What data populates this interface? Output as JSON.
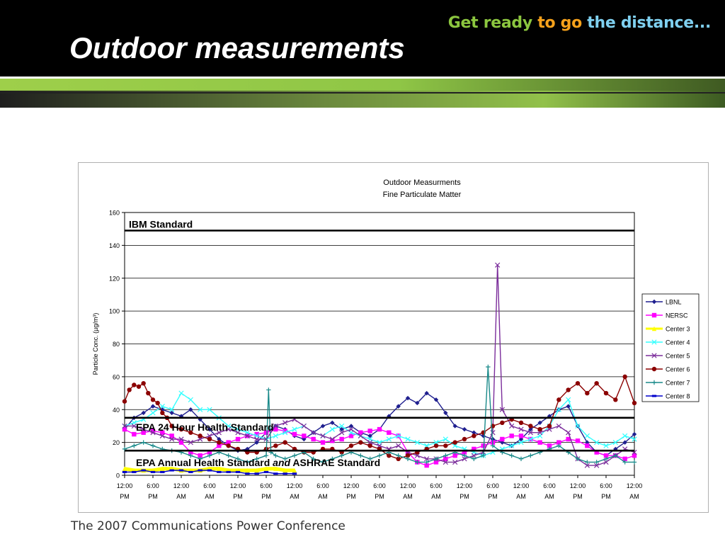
{
  "slide": {
    "title": "Outdoor measurements",
    "tagline": {
      "part1": "Get ready",
      "part2": "to go",
      "part3": "the distance..."
    },
    "footer": "The 2007 Communications Power Conference"
  },
  "chart_data": {
    "type": "line",
    "title": "Outdoor Measurments",
    "subtitle": "Fine Particulate Matter",
    "ylabel": "Particle Conc. (µg/m³)",
    "xlabel": "",
    "ylim": [
      0,
      160
    ],
    "yticks": [
      0,
      20,
      40,
      60,
      80,
      100,
      120,
      140,
      160
    ],
    "xlim": [
      0,
      108
    ],
    "x_units": "hours",
    "xticks": [
      {
        "x": 0,
        "line1": "12:00",
        "line2": "PM"
      },
      {
        "x": 6,
        "line1": "6:00",
        "line2": "PM"
      },
      {
        "x": 12,
        "line1": "12:00",
        "line2": "AM"
      },
      {
        "x": 18,
        "line1": "6:00",
        "line2": "AM"
      },
      {
        "x": 24,
        "line1": "12:00",
        "line2": "PM"
      },
      {
        "x": 30,
        "line1": "6:00",
        "line2": "PM"
      },
      {
        "x": 36,
        "line1": "12:00",
        "line2": "AM"
      },
      {
        "x": 42,
        "line1": "6:00",
        "line2": "AM"
      },
      {
        "x": 48,
        "line1": "12:00",
        "line2": "PM"
      },
      {
        "x": 54,
        "line1": "6:00",
        "line2": "PM"
      },
      {
        "x": 60,
        "line1": "12:00",
        "line2": "AM"
      },
      {
        "x": 66,
        "line1": "6:00",
        "line2": "AM"
      },
      {
        "x": 72,
        "line1": "12:00",
        "line2": "PM"
      },
      {
        "x": 78,
        "line1": "6:00",
        "line2": "PM"
      },
      {
        "x": 84,
        "line1": "12:00",
        "line2": "AM"
      },
      {
        "x": 90,
        "line1": "6:00",
        "line2": "AM"
      },
      {
        "x": 96,
        "line1": "12:00",
        "line2": "PM"
      },
      {
        "x": 102,
        "line1": "6:00",
        "line2": "PM"
      },
      {
        "x": 108,
        "line1": "12:00",
        "line2": "AM"
      }
    ],
    "grid": true,
    "legend_position": "right",
    "reference_lines": [
      {
        "label": "IBM Standard",
        "y": 149
      },
      {
        "label": "EPA 24 Hour Health Standard",
        "y": 35
      },
      {
        "label_pre": "EPA Annual Health Standard ",
        "label_em": "and",
        "label_post": " ASHRAE Standard",
        "y": 15
      }
    ],
    "series": [
      {
        "name": "LBNL",
        "color": "#1f1f8f",
        "marker": "diamond",
        "x": [
          0,
          2,
          4,
          6,
          8,
          10,
          12,
          14,
          16,
          18,
          20,
          22,
          24,
          26,
          28,
          30,
          32,
          34,
          36,
          38,
          40,
          42,
          44,
          46,
          48,
          50,
          52,
          54,
          56,
          58,
          60,
          62,
          64,
          66,
          68,
          70,
          72,
          74,
          76,
          78,
          80,
          82,
          84,
          86,
          88,
          90,
          92,
          94,
          96,
          98,
          100,
          102,
          104,
          106,
          108
        ],
        "y": [
          28,
          35,
          38,
          42,
          40,
          38,
          36,
          40,
          34,
          28,
          22,
          18,
          15,
          16,
          20,
          26,
          30,
          28,
          24,
          22,
          26,
          30,
          32,
          28,
          30,
          26,
          24,
          28,
          36,
          42,
          47,
          44,
          50,
          46,
          38,
          30,
          28,
          26,
          24,
          22,
          20,
          18,
          22,
          28,
          32,
          36,
          40,
          42,
          30,
          20,
          14,
          12,
          16,
          20,
          25
        ]
      },
      {
        "name": "NERSC",
        "color": "#ff00ff",
        "marker": "square",
        "x": [
          0,
          2,
          4,
          6,
          8,
          10,
          12,
          14,
          16,
          18,
          20,
          22,
          24,
          26,
          28,
          30,
          32,
          34,
          36,
          38,
          40,
          42,
          44,
          46,
          48,
          50,
          52,
          54,
          56,
          58,
          60,
          62,
          64,
          66,
          68,
          70,
          72,
          74,
          76,
          78,
          80,
          82,
          84,
          86,
          88,
          90,
          92,
          94,
          96,
          98,
          100,
          102,
          104,
          106,
          108
        ],
        "y": [
          28,
          25,
          26,
          27,
          26,
          24,
          20,
          14,
          12,
          14,
          18,
          20,
          22,
          24,
          25,
          26,
          28,
          27,
          25,
          24,
          22,
          20,
          21,
          22,
          24,
          26,
          27,
          28,
          26,
          24,
          14,
          8,
          6,
          8,
          10,
          12,
          14,
          16,
          18,
          20,
          22,
          24,
          24,
          22,
          20,
          18,
          20,
          22,
          21,
          18,
          14,
          12,
          12,
          10,
          12
        ]
      },
      {
        "name": "Center 3",
        "color": "#ffff00",
        "marker": "triangle",
        "x": [
          0,
          2,
          4,
          6,
          8,
          10,
          12,
          14,
          16,
          18,
          20,
          22,
          24,
          26,
          28,
          30,
          32,
          34,
          36
        ],
        "y": [
          4,
          3,
          3,
          3,
          4,
          4,
          3,
          3,
          3,
          4,
          4,
          3,
          3,
          3,
          3,
          4,
          4,
          3,
          3
        ]
      },
      {
        "name": "Center 4",
        "color": "#33ffff",
        "marker": "x",
        "x": [
          0,
          2,
          4,
          6,
          8,
          10,
          12,
          14,
          16,
          18,
          20,
          22,
          24,
          26,
          28,
          30,
          32,
          34,
          36,
          38,
          40,
          42,
          44,
          46,
          48,
          50,
          52,
          54,
          56,
          58,
          60,
          62,
          64,
          66,
          68,
          70,
          72,
          74,
          76,
          78,
          80,
          82,
          84,
          86,
          88,
          90,
          92,
          94,
          96,
          98,
          100,
          102,
          104,
          106,
          108
        ],
        "y": [
          30,
          32,
          34,
          38,
          42,
          40,
          50,
          46,
          40,
          40,
          35,
          30,
          28,
          26,
          24,
          22,
          24,
          26,
          28,
          30,
          26,
          24,
          28,
          30,
          26,
          24,
          22,
          20,
          22,
          24,
          22,
          20,
          18,
          20,
          22,
          18,
          16,
          14,
          12,
          14,
          16,
          18,
          20,
          22,
          24,
          30,
          40,
          46,
          30,
          24,
          20,
          18,
          20,
          24,
          22
        ]
      },
      {
        "name": "Center 5",
        "color": "#7b2d9b",
        "marker": "x",
        "x": [
          0,
          2,
          4,
          6,
          8,
          10,
          12,
          14,
          16,
          18,
          20,
          22,
          24,
          26,
          28,
          30,
          32,
          34,
          36,
          38,
          40,
          42,
          44,
          46,
          48,
          50,
          52,
          54,
          56,
          58,
          60,
          62,
          64,
          66,
          68,
          70,
          72,
          74,
          76,
          78,
          79,
          80,
          82,
          84,
          86,
          88,
          90,
          92,
          94,
          96,
          98,
          100,
          102,
          104,
          106,
          108
        ],
        "y": [
          30,
          30,
          28,
          26,
          24,
          22,
          22,
          20,
          22,
          24,
          26,
          28,
          26,
          24,
          22,
          22,
          30,
          32,
          34,
          30,
          26,
          24,
          22,
          26,
          28,
          24,
          20,
          18,
          16,
          18,
          14,
          12,
          10,
          10,
          8,
          8,
          10,
          12,
          14,
          26,
          128,
          40,
          30,
          28,
          26,
          26,
          28,
          30,
          26,
          10,
          6,
          6,
          8,
          12,
          16,
          14
        ]
      },
      {
        "name": "Center 6",
        "color": "#8b0000",
        "marker": "circle",
        "x": [
          0,
          1,
          2,
          3,
          4,
          5,
          6,
          7,
          8,
          9,
          10,
          12,
          14,
          16,
          18,
          20,
          22,
          24,
          26,
          28,
          30,
          32,
          34,
          36,
          38,
          40,
          42,
          44,
          46,
          48,
          50,
          52,
          54,
          56,
          58,
          60,
          62,
          64,
          66,
          68,
          70,
          72,
          74,
          76,
          78,
          80,
          82,
          84,
          86,
          88,
          90,
          92,
          94,
          96,
          98,
          100,
          102,
          104,
          106,
          108
        ],
        "y": [
          45,
          52,
          55,
          54,
          56,
          50,
          46,
          44,
          38,
          35,
          30,
          28,
          26,
          24,
          22,
          20,
          18,
          16,
          14,
          14,
          16,
          18,
          20,
          16,
          14,
          14,
          16,
          16,
          14,
          18,
          20,
          18,
          16,
          12,
          10,
          12,
          14,
          16,
          18,
          18,
          20,
          22,
          24,
          26,
          30,
          32,
          34,
          32,
          30,
          28,
          30,
          46,
          52,
          56,
          50,
          56,
          50,
          46,
          60,
          44
        ]
      },
      {
        "name": "Center 7",
        "color": "#1a8a8a",
        "marker": "plus",
        "x": [
          0,
          2,
          4,
          6,
          8,
          10,
          12,
          14,
          16,
          18,
          20,
          22,
          24,
          26,
          28,
          30,
          30.5,
          31,
          32,
          34,
          36,
          38,
          40,
          42,
          44,
          46,
          48,
          50,
          52,
          54,
          56,
          58,
          60,
          62,
          64,
          66,
          68,
          70,
          72,
          74,
          76,
          77,
          78,
          80,
          82,
          84,
          86,
          88,
          90,
          92,
          94,
          96,
          98,
          100,
          102,
          104,
          106,
          108
        ],
        "y": [
          16,
          18,
          20,
          18,
          16,
          15,
          14,
          12,
          10,
          12,
          14,
          12,
          10,
          8,
          10,
          12,
          52,
          14,
          12,
          10,
          12,
          14,
          10,
          8,
          10,
          12,
          14,
          12,
          10,
          12,
          14,
          12,
          10,
          8,
          8,
          10,
          12,
          14,
          12,
          10,
          12,
          66,
          18,
          14,
          12,
          10,
          12,
          14,
          16,
          18,
          14,
          10,
          8,
          8,
          10,
          12,
          8,
          8
        ]
      },
      {
        "name": "Center 8",
        "color": "#0000cc",
        "marker": "dash",
        "x": [
          0,
          2,
          4,
          6,
          8,
          10,
          12,
          14,
          16,
          18,
          20,
          22,
          24,
          26,
          28,
          30,
          32,
          34,
          36
        ],
        "y": [
          2,
          2,
          3,
          2,
          2,
          3,
          3,
          2,
          3,
          3,
          2,
          2,
          2,
          1,
          1,
          2,
          1,
          1,
          1
        ]
      }
    ]
  }
}
